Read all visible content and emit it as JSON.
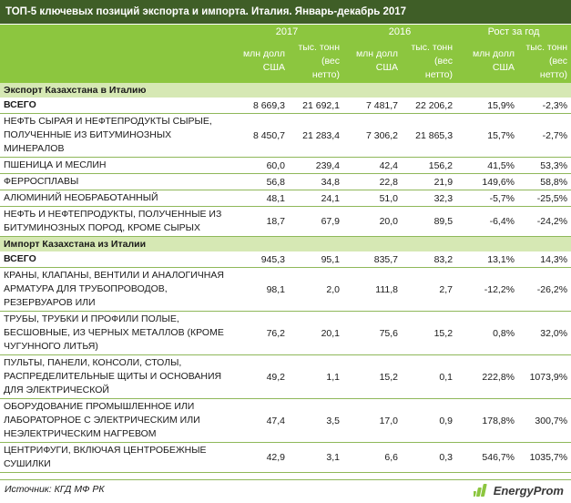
{
  "title": "ТОП-5 ключевых позиций экспорта и импорта. Италия. Январь-декабрь 2017",
  "header": {
    "years": [
      "2017",
      "2016",
      "Рост за год"
    ],
    "units": [
      "млн долл США",
      "тыс. тонн (вес нетто)",
      "млн долл США",
      "тыс. тонн (вес нетто)",
      "млн долл США",
      "тыс. тонн (вес нетто)"
    ]
  },
  "export": {
    "title": "Экспорт Казахстана в Италию",
    "total": {
      "name": "ВСЕГО",
      "values": [
        "8 669,3",
        "21 692,1",
        "7 481,7",
        "22 206,2",
        "15,9%",
        "-2,3%"
      ]
    },
    "rows": [
      {
        "name": "НЕФТЬ СЫРАЯ И НЕФТЕПРОДУКТЫ СЫРЫЕ, ПОЛУЧЕННЫЕ ИЗ БИТУМИНОЗНЫХ МИНЕРАЛОВ",
        "values": [
          "8 450,7",
          "21 283,4",
          "7 306,2",
          "21 865,3",
          "15,7%",
          "-2,7%"
        ]
      },
      {
        "name": "ПШЕНИЦА И МЕСЛИН",
        "values": [
          "60,0",
          "239,4",
          "42,4",
          "156,2",
          "41,5%",
          "53,3%"
        ]
      },
      {
        "name": "ФЕРРОСПЛАВЫ",
        "values": [
          "56,8",
          "34,8",
          "22,8",
          "21,9",
          "149,6%",
          "58,8%"
        ]
      },
      {
        "name": "АЛЮМИНИЙ НЕОБРАБОТАННЫЙ",
        "values": [
          "48,1",
          "24,1",
          "51,0",
          "32,3",
          "-5,7%",
          "-25,5%"
        ]
      },
      {
        "name": "НЕФТЬ И НЕФТЕПРОДУКТЫ, ПОЛУЧЕННЫЕ ИЗ БИТУМИНОЗНЫХ ПОРОД, КРОМЕ СЫРЫХ",
        "values": [
          "18,7",
          "67,9",
          "20,0",
          "89,5",
          "-6,4%",
          "-24,2%"
        ]
      }
    ]
  },
  "import": {
    "title": "Импорт Казахстана из Италии",
    "total": {
      "name": "ВСЕГО",
      "values": [
        "945,3",
        "95,1",
        "835,7",
        "83,2",
        "13,1%",
        "14,3%"
      ]
    },
    "rows": [
      {
        "name": "КРАНЫ, КЛАПАНЫ, ВЕНТИЛИ И АНАЛОГИЧНАЯ АРМАТУРА ДЛЯ ТРУБОПРОВОДОВ, РЕЗЕРВУАРОВ ИЛИ",
        "values": [
          "98,1",
          "2,0",
          "111,8",
          "2,7",
          "-12,2%",
          "-26,2%"
        ]
      },
      {
        "name": "ТРУБЫ, ТРУБКИ И ПРОФИЛИ ПОЛЫЕ, БЕСШОВНЫЕ, ИЗ ЧЕРНЫХ МЕТАЛЛОВ (КРОМЕ ЧУГУННОГО ЛИТЬЯ)",
        "values": [
          "76,2",
          "20,1",
          "75,6",
          "15,2",
          "0,8%",
          "32,0%"
        ]
      },
      {
        "name": "ПУЛЬТЫ, ПАНЕЛИ, КОНСОЛИ, СТОЛЫ, РАСПРЕДЕЛИТЕЛЬНЫЕ ЩИТЫ И ОСНОВАНИЯ ДЛЯ ЭЛЕКТРИЧЕСКОЙ",
        "values": [
          "49,2",
          "1,1",
          "15,2",
          "0,1",
          "222,8%",
          "1073,9%"
        ]
      },
      {
        "name": "ОБОРУДОВАНИЕ ПРОМЫШЛЕННОЕ ИЛИ ЛАБОРАТОРНОЕ С ЭЛЕКТРИЧЕСКИМ ИЛИ НЕЭЛЕКТРИЧЕСКИМ НАГРЕВОМ",
        "values": [
          "47,4",
          "3,5",
          "17,0",
          "0,9",
          "178,8%",
          "300,7%"
        ]
      },
      {
        "name": "ЦЕНТРИФУГИ, ВКЛЮЧАЯ ЦЕНТРОБЕЖНЫЕ СУШИЛКИ",
        "values": [
          "42,9",
          "3,1",
          "6,6",
          "0,3",
          "546,7%",
          "1035,7%"
        ]
      }
    ]
  },
  "source": "Источник: КГД МФ РК",
  "logo": {
    "text": "EnergyProm",
    "icon": "energyprom-logo-icon",
    "color": "#8cc63f"
  }
}
